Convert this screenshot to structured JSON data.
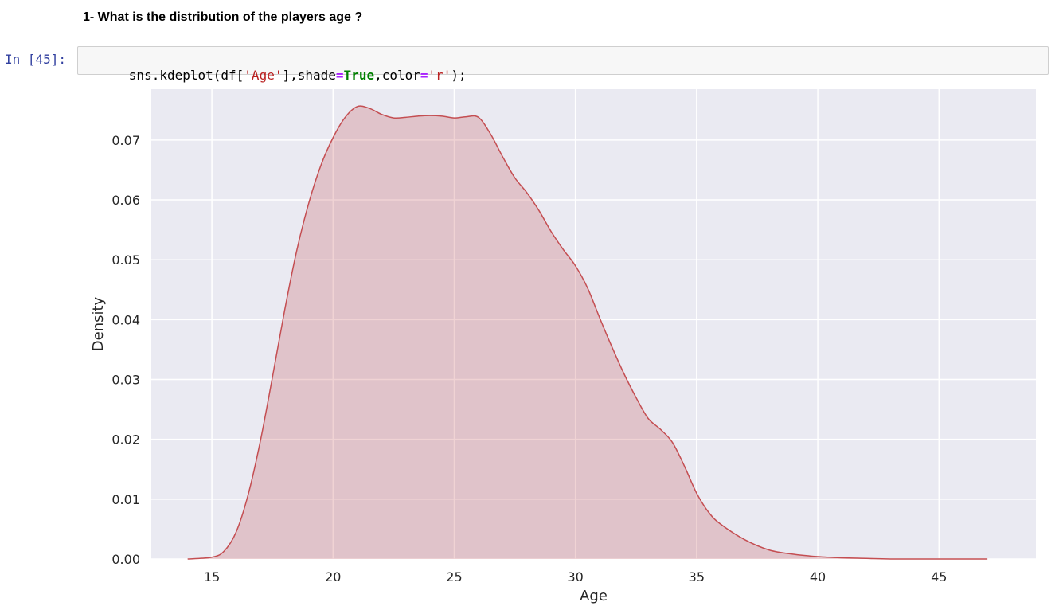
{
  "notebook": {
    "heading": "1- What is the distribution of the players age ?",
    "cell": {
      "prompt": "In [45]:",
      "code_tokens": [
        {
          "text": "sns.kdeplot(df[",
          "kind": "plain"
        },
        {
          "text": "'Age'",
          "kind": "str"
        },
        {
          "text": "],shade",
          "kind": "plain"
        },
        {
          "text": "=",
          "kind": "op"
        },
        {
          "text": "True",
          "kind": "kw"
        },
        {
          "text": ",color",
          "kind": "plain"
        },
        {
          "text": "=",
          "kind": "op"
        },
        {
          "text": "'r'",
          "kind": "str"
        },
        {
          "text": ");",
          "kind": "plain"
        }
      ]
    }
  },
  "chart_data": {
    "type": "area",
    "xlabel": "Age",
    "ylabel": "Density",
    "xlim": [
      12.5,
      49.0
    ],
    "ylim": [
      0.0,
      0.0785
    ],
    "xticks": [
      15,
      20,
      25,
      30,
      35,
      40,
      45
    ],
    "yticks": [
      0.0,
      0.01,
      0.02,
      0.03,
      0.04,
      0.05,
      0.06,
      0.07
    ],
    "ytick_labels": [
      "0.00",
      "0.01",
      "0.02",
      "0.03",
      "0.04",
      "0.05",
      "0.06",
      "0.07"
    ],
    "grid": true,
    "colors": {
      "background": "#eaeaf2",
      "grid": "#ffffff",
      "line": "#c44e52",
      "fill": "#c44e52"
    },
    "x": [
      14,
      15,
      15.5,
      16,
      16.5,
      17,
      17.5,
      18,
      18.5,
      19,
      19.5,
      20,
      20.5,
      21,
      21.5,
      22,
      22.5,
      23,
      23.5,
      24,
      24.5,
      25,
      25.5,
      26,
      26.5,
      27,
      27.5,
      28,
      28.5,
      29,
      29.5,
      30,
      30.5,
      31,
      31.5,
      32,
      32.5,
      33,
      33.5,
      34,
      34.5,
      35,
      35.5,
      36,
      37,
      38,
      39,
      40,
      41,
      42,
      43,
      45,
      47
    ],
    "y": [
      0.0,
      0.0003,
      0.0013,
      0.0045,
      0.0108,
      0.0197,
      0.0304,
      0.0415,
      0.0515,
      0.0595,
      0.0658,
      0.0704,
      0.0738,
      0.0756,
      0.0753,
      0.0743,
      0.0737,
      0.0738,
      0.074,
      0.0741,
      0.074,
      0.0737,
      0.0739,
      0.0738,
      0.071,
      0.0672,
      0.0637,
      0.0612,
      0.0582,
      0.0547,
      0.0517,
      0.049,
      0.0453,
      0.0403,
      0.0355,
      0.031,
      0.027,
      0.0235,
      0.0217,
      0.0195,
      0.0155,
      0.011,
      0.0078,
      0.0058,
      0.0032,
      0.0015,
      0.0008,
      0.0004,
      0.0002,
      0.0001,
      0.0,
      0.0,
      0.0
    ]
  }
}
